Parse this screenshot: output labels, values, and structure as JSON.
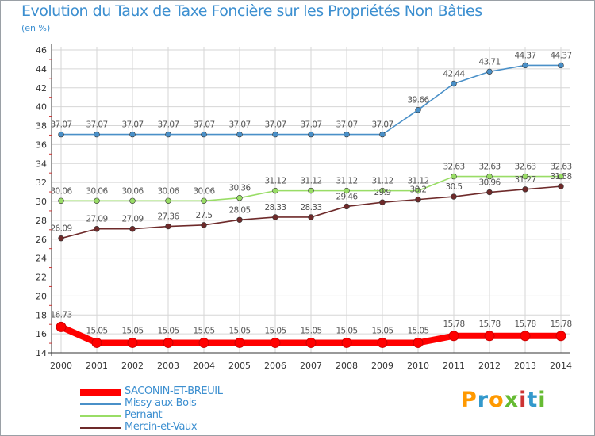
{
  "chart_data": {
    "type": "line",
    "title": "Evolution du Taux de Taxe Foncière sur les Propriétés Non Bâties",
    "ylabel": "(en %)",
    "xlabel": "",
    "ylim": [
      14,
      46
    ],
    "yticks": [
      14,
      16,
      18,
      20,
      22,
      24,
      26,
      28,
      30,
      32,
      34,
      36,
      38,
      40,
      42,
      44,
      46
    ],
    "x": [
      "2000",
      "2001",
      "2002",
      "2003",
      "2004",
      "2005",
      "2006",
      "2007",
      "2008",
      "2009",
      "2010",
      "2011",
      "2012",
      "2013",
      "2014"
    ],
    "grid": true,
    "legend_position": "bottom-left",
    "series": [
      {
        "name": "SACONIN-ET-BREUIL",
        "color": "#ff0000",
        "values": [
          16.73,
          15.05,
          15.05,
          15.05,
          15.05,
          15.05,
          15.05,
          15.05,
          15.05,
          15.05,
          15.05,
          15.78,
          15.78,
          15.78,
          15.78
        ],
        "labels": [
          "16.73",
          "15.05",
          "15.05",
          "15.05",
          "15.05",
          "15.05",
          "15.05",
          "15.05",
          "15.05",
          "15.05",
          "15.05",
          "15.78",
          "15.78",
          "15.78",
          "15.78"
        ]
      },
      {
        "name": "Missy-aux-Bois",
        "color": "#4a90c8",
        "values": [
          37.07,
          37.07,
          37.07,
          37.07,
          37.07,
          37.07,
          37.07,
          37.07,
          37.07,
          37.07,
          39.66,
          42.44,
          43.71,
          44.37,
          44.37
        ],
        "labels": [
          "37.07",
          "37.07",
          "37.07",
          "37.07",
          "37.07",
          "37.07",
          "37.07",
          "37.07",
          "37.07",
          "37.07",
          "39.66",
          "42.44",
          "43.71",
          "44.37",
          "44.37"
        ]
      },
      {
        "name": "Pernant",
        "color": "#99dd66",
        "values": [
          30.06,
          30.06,
          30.06,
          30.06,
          30.06,
          30.36,
          31.12,
          31.12,
          31.12,
          31.12,
          31.12,
          32.63,
          32.63,
          32.63,
          32.63
        ],
        "labels": [
          "30.06",
          "30.06",
          "30.06",
          "30.06",
          "30.06",
          "30.36",
          "31.12",
          "31.12",
          "31.12",
          "31.12",
          "31.12",
          "32.63",
          "32.63",
          "32.63",
          "32.63"
        ]
      },
      {
        "name": "Mercin-et-Vaux",
        "color": "#6e2a2a",
        "values": [
          26.09,
          27.09,
          27.09,
          27.36,
          27.5,
          28.05,
          28.33,
          28.33,
          29.46,
          29.9,
          30.2,
          30.5,
          30.96,
          31.27,
          31.58
        ],
        "labels": [
          "26.09",
          "27.09",
          "27.09",
          "27.36",
          "27.5",
          "28.05",
          "28.33",
          "28.33",
          "29.46",
          "29.9",
          "30.2",
          "30.5",
          "30.96",
          "31.27",
          "31.58"
        ]
      }
    ]
  },
  "branding": {
    "logo_text": "Proxiti",
    "logo_colors": [
      "#ff9900",
      "#3399cc",
      "#ff9900",
      "#66bb33",
      "#cc3333",
      "#3399cc",
      "#66bb33"
    ]
  }
}
